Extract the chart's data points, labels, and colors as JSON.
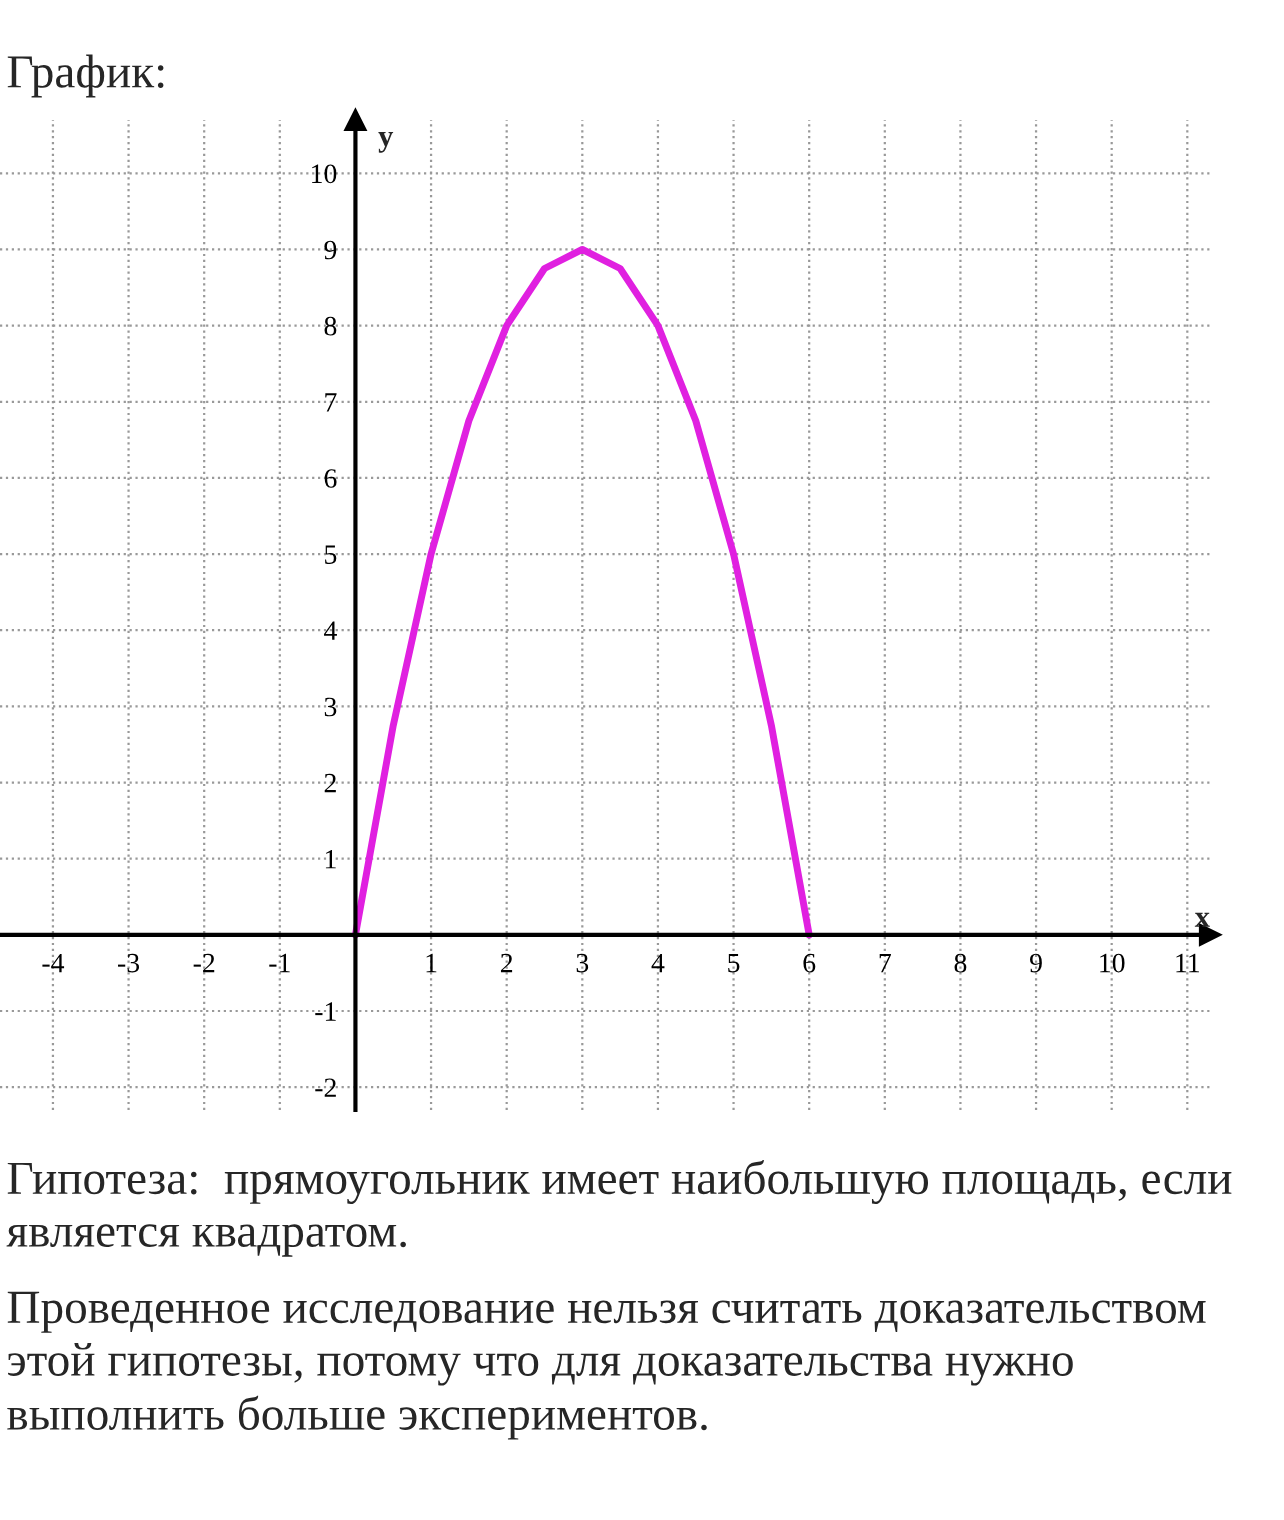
{
  "chart_data": {
    "type": "line",
    "title": "График:",
    "xlabel": "x",
    "ylabel": "y",
    "x": [
      0,
      0.5,
      1,
      1.5,
      2,
      2.5,
      3,
      3.5,
      4,
      4.5,
      5,
      5.5,
      6
    ],
    "series": [
      {
        "color": "#e020e0",
        "values": [
          0,
          2.75,
          5,
          6.75,
          8,
          8.75,
          9,
          8.75,
          8,
          6.75,
          5,
          2.75,
          0
        ]
      }
    ],
    "xlim": [
      -4.7,
      11.3
    ],
    "ylim": [
      -2.3,
      10.7
    ],
    "xticks": [
      -4,
      -3,
      -2,
      -1,
      1,
      2,
      3,
      4,
      5,
      6,
      7,
      8,
      9,
      10,
      11
    ],
    "yticks": [
      -2,
      -1,
      1,
      2,
      3,
      4,
      5,
      6,
      7,
      8,
      9,
      10
    ],
    "grid": true,
    "line_style": "solid",
    "marker": "none",
    "annotations": [
      "Гипотеза:  прямоугольник имеет наибольшую площадь, если является квадратом.",
      "Проведенное исследование нельзя считать доказательством этой гипотезы, потому что для доказательства нужно выполнить больше экспериментов."
    ]
  }
}
